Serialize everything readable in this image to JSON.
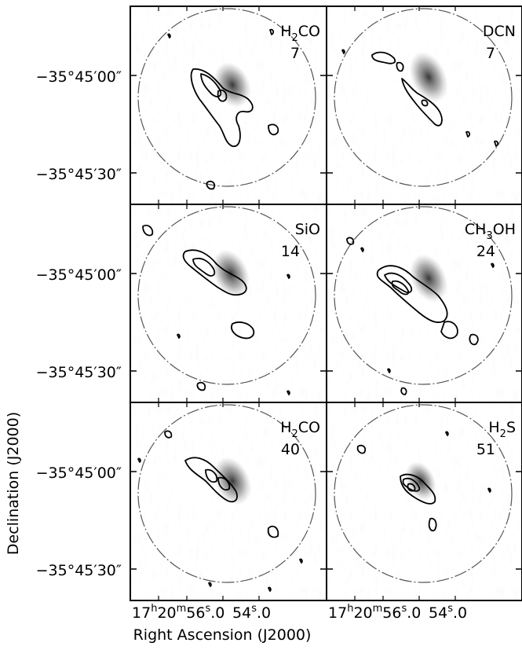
{
  "figure": {
    "x_axis_title": "Right Ascension (J2000)",
    "y_axis_title": "Declination (J2000)",
    "ra_tick_labels": [
      {
        "h": "17",
        "hs": "h",
        "m": "20",
        "ms": "m",
        "s": "56",
        "ss": "s",
        ".0": ".0"
      },
      {
        "s": "54",
        "ss": "s",
        "rest": ".0"
      }
    ],
    "dec_tick_labels": [
      "−35°45′00″",
      "−35°45′30″"
    ]
  },
  "panels": [
    {
      "molecule": "H2CO",
      "main": "H",
      "sub": "2",
      "tail": "CO",
      "velocity": "7"
    },
    {
      "molecule": "DCN",
      "main": "DCN",
      "sub": "",
      "tail": "",
      "velocity": "7"
    },
    {
      "molecule": "SiO",
      "main": "SiO",
      "sub": "",
      "tail": "",
      "velocity": "14"
    },
    {
      "molecule": "CH3OH",
      "main": "CH",
      "sub": "3",
      "tail": "OH",
      "velocity": "24"
    },
    {
      "molecule": "H2CO",
      "main": "H",
      "sub": "2",
      "tail": "CO",
      "velocity": "40"
    },
    {
      "molecule": "H2S",
      "main": "H",
      "sub": "2",
      "tail": "S",
      "velocity": "51"
    }
  ],
  "colors": {
    "frame": "#000000",
    "beam_circle": "#555555",
    "grey_core": "#2e2e2e"
  }
}
